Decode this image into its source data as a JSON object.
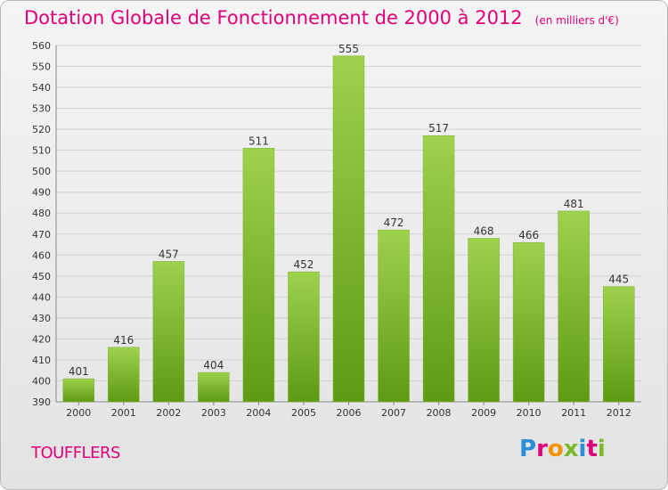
{
  "header": {
    "title": "Dotation Globale de Fonctionnement de 2000 à 2012",
    "unit": "(en milliers d'€)"
  },
  "footer": {
    "commune": "TOUFFLERS",
    "logo": "Proxiti"
  },
  "colors": {
    "accent": "#e0007a",
    "bar_top": "#9ed14c",
    "bar_bottom": "#5e9a12",
    "grid": "#d2d2d2"
  },
  "chart_data": {
    "type": "bar",
    "categories": [
      "2000",
      "2001",
      "2002",
      "2003",
      "2004",
      "2005",
      "2006",
      "2007",
      "2008",
      "2009",
      "2010",
      "2011",
      "2012"
    ],
    "values": [
      401,
      416,
      457,
      404,
      511,
      452,
      555,
      472,
      517,
      468,
      466,
      481,
      445
    ],
    "title": "Dotation Globale de Fonctionnement de 2000 à 2012",
    "subtitle": "(en milliers d'€)",
    "xlabel": "",
    "ylabel": "",
    "ylim": [
      390,
      560
    ],
    "ytick_step": 10,
    "grid": true,
    "data_labels": true
  }
}
